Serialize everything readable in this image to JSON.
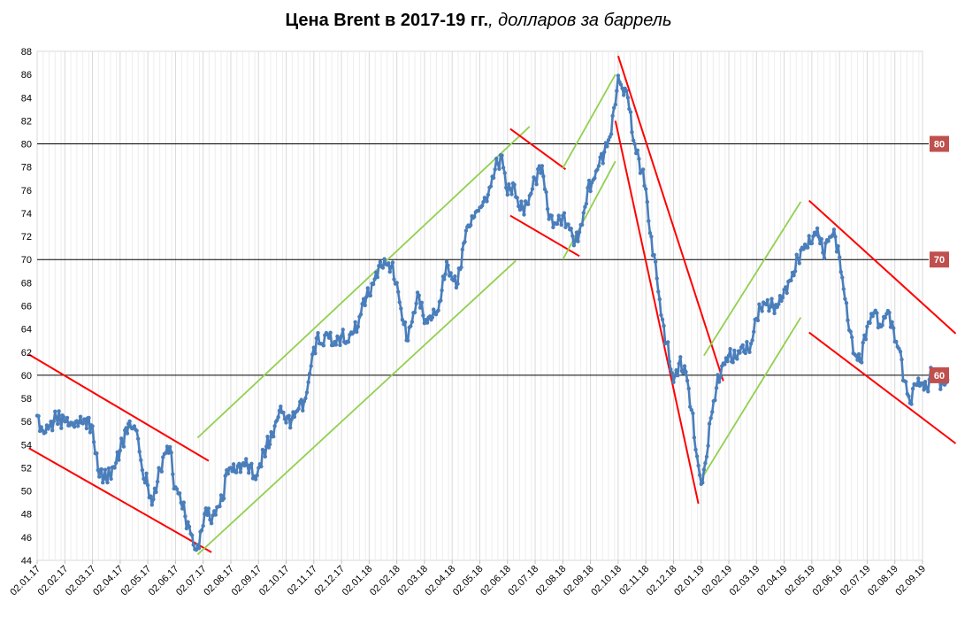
{
  "chart_data": {
    "type": "line",
    "title": "Цена Brent в 2017-19 гг.",
    "subtitle": ", долларов за баррель",
    "xlabel": "",
    "ylabel": "",
    "ylim": [
      44,
      88
    ],
    "y_ticks": [
      "44",
      "46",
      "48",
      "50",
      "52",
      "54",
      "56",
      "58",
      "60",
      "62",
      "64",
      "66",
      "68",
      "70",
      "72",
      "74",
      "76",
      "78",
      "80",
      "82",
      "84",
      "86",
      "88"
    ],
    "x_ticks": [
      "02.01.17",
      "02.02.17",
      "02.03.17",
      "02.04.17",
      "02.05.17",
      "02.06.17",
      "02.07.17",
      "02.08.17",
      "02.09.17",
      "02.10.17",
      "02.11.17",
      "02.12.17",
      "02.01.18",
      "02.02.18",
      "02.03.18",
      "02.04.18",
      "02.05.18",
      "02.06.18",
      "02.07.18",
      "02.08.18",
      "02.09.18",
      "02.10.18",
      "02.11.18",
      "02.12.18",
      "02.01.19",
      "02.02.19",
      "02.03.19",
      "02.04.19",
      "02.05.19",
      "02.06.19",
      "02.07.19",
      "02.08.19",
      "02.09.19"
    ],
    "grid": "vertical-minor",
    "series_color": "#4A7EBB",
    "reference_lines": [
      {
        "value": 80,
        "label": "80"
      },
      {
        "value": 70,
        "label": "70"
      },
      {
        "value": 60,
        "label": "60"
      }
    ],
    "badge_color": "#C0504D",
    "channel_colors": {
      "down": "#FF0000",
      "up": "#92D050"
    },
    "series": [
      {
        "x": [
          "02.01.17",
          "02.02.17",
          "02.03.17",
          "02.04.17",
          "02.05.17",
          "02.06.17",
          "02.07.17",
          "02.08.17",
          "02.09.17",
          "02.10.17",
          "02.11.17",
          "02.12.17",
          "02.01.18",
          "02.02.18",
          "02.03.18",
          "02.04.18",
          "02.05.18",
          "02.06.18",
          "02.07.18",
          "02.08.18",
          "02.09.18",
          "02.10.18",
          "02.11.18",
          "02.12.18",
          "02.01.19",
          "02.02.19",
          "02.03.19",
          "02.04.19",
          "02.05.19",
          "02.06.19",
          "02.07.19",
          "02.08.19",
          "02.09.19"
        ],
        "anchors": [
          [
            0,
            56.5
          ],
          [
            0.2,
            55.2
          ],
          [
            0.45,
            55.6
          ],
          [
            0.7,
            56.3
          ],
          [
            1.0,
            56.0
          ],
          [
            1.3,
            55.7
          ],
          [
            1.7,
            56.2
          ],
          [
            2.0,
            55.6
          ],
          [
            2.2,
            51.8
          ],
          [
            2.5,
            51.0
          ],
          [
            2.8,
            52.0
          ],
          [
            3.0,
            53.5
          ],
          [
            3.3,
            55.8
          ],
          [
            3.6,
            55.2
          ],
          [
            3.8,
            51.8
          ],
          [
            4.0,
            50.5
          ],
          [
            4.15,
            48.8
          ],
          [
            4.35,
            50.8
          ],
          [
            4.6,
            53.2
          ],
          [
            4.8,
            53.8
          ],
          [
            4.95,
            50.2
          ],
          [
            5.15,
            49.8
          ],
          [
            5.35,
            47.8
          ],
          [
            5.55,
            46.3
          ],
          [
            5.75,
            44.9
          ],
          [
            5.95,
            46.6
          ],
          [
            6.1,
            48.5
          ],
          [
            6.3,
            47.2
          ],
          [
            6.5,
            48.6
          ],
          [
            6.7,
            49.2
          ],
          [
            6.85,
            51.8
          ],
          [
            7.0,
            52.0
          ],
          [
            7.2,
            51.6
          ],
          [
            7.45,
            52.4
          ],
          [
            7.7,
            52.2
          ],
          [
            7.9,
            51.0
          ],
          [
            8.0,
            52.0
          ],
          [
            8.2,
            53.5
          ],
          [
            8.5,
            54.7
          ],
          [
            8.8,
            57.3
          ],
          [
            9.0,
            55.9
          ],
          [
            9.2,
            56.2
          ],
          [
            9.45,
            57.1
          ],
          [
            9.7,
            58.0
          ],
          [
            9.9,
            60.8
          ],
          [
            10.1,
            63.2
          ],
          [
            10.3,
            62.7
          ],
          [
            10.5,
            63.5
          ],
          [
            10.7,
            62.6
          ],
          [
            10.9,
            63.2
          ],
          [
            11.0,
            63.4
          ],
          [
            11.2,
            62.9
          ],
          [
            11.4,
            63.6
          ],
          [
            11.6,
            64.2
          ],
          [
            11.8,
            66.6
          ],
          [
            12.0,
            66.9
          ],
          [
            12.2,
            68.3
          ],
          [
            12.4,
            69.8
          ],
          [
            12.6,
            69.6
          ],
          [
            12.8,
            69.4
          ],
          [
            13.0,
            68.0
          ],
          [
            13.2,
            64.8
          ],
          [
            13.4,
            63.0
          ],
          [
            13.6,
            65.4
          ],
          [
            13.8,
            66.9
          ],
          [
            14.0,
            64.5
          ],
          [
            14.2,
            65.1
          ],
          [
            14.5,
            65.6
          ],
          [
            14.8,
            69.8
          ],
          [
            15.0,
            68.3
          ],
          [
            15.2,
            67.9
          ],
          [
            15.5,
            72.5
          ],
          [
            15.8,
            73.7
          ],
          [
            16.0,
            74.5
          ],
          [
            16.3,
            75.6
          ],
          [
            16.55,
            77.8
          ],
          [
            16.8,
            79.0
          ],
          [
            17.0,
            75.6
          ],
          [
            17.2,
            76.6
          ],
          [
            17.45,
            74.3
          ],
          [
            17.7,
            74.8
          ],
          [
            17.9,
            76.1
          ],
          [
            18.0,
            77.0
          ],
          [
            18.25,
            78.1
          ],
          [
            18.5,
            73.5
          ],
          [
            18.75,
            73.1
          ],
          [
            19.0,
            73.8
          ],
          [
            19.25,
            72.6
          ],
          [
            19.45,
            71.6
          ],
          [
            19.7,
            73.0
          ],
          [
            19.9,
            76.2
          ],
          [
            20.1,
            76.9
          ],
          [
            20.3,
            78.1
          ],
          [
            20.5,
            79.3
          ],
          [
            20.7,
            80.6
          ],
          [
            20.9,
            83.4
          ],
          [
            21.0,
            85.9
          ],
          [
            21.15,
            84.8
          ],
          [
            21.35,
            84.0
          ],
          [
            21.55,
            80.3
          ],
          [
            21.75,
            78.7
          ],
          [
            22.0,
            76.1
          ],
          [
            22.15,
            72.3
          ],
          [
            22.35,
            69.8
          ],
          [
            22.55,
            65.2
          ],
          [
            22.75,
            62.8
          ],
          [
            22.95,
            60.2
          ],
          [
            23.0,
            59.4
          ],
          [
            23.2,
            61.0
          ],
          [
            23.45,
            60.3
          ],
          [
            23.65,
            57.0
          ],
          [
            23.85,
            53.0
          ],
          [
            24.0,
            50.6
          ],
          [
            24.15,
            52.4
          ],
          [
            24.35,
            56.3
          ],
          [
            24.55,
            58.9
          ],
          [
            24.75,
            60.8
          ],
          [
            25.0,
            61.7
          ],
          [
            25.25,
            61.5
          ],
          [
            25.5,
            62.6
          ],
          [
            25.75,
            62.0
          ],
          [
            26.0,
            64.9
          ],
          [
            26.25,
            66.3
          ],
          [
            26.5,
            65.9
          ],
          [
            26.75,
            65.9
          ],
          [
            27.0,
            67.4
          ],
          [
            27.25,
            68.2
          ],
          [
            27.5,
            70.1
          ],
          [
            27.75,
            71.3
          ],
          [
            28.0,
            71.4
          ],
          [
            28.2,
            72.7
          ],
          [
            28.4,
            70.6
          ],
          [
            28.6,
            71.6
          ],
          [
            28.8,
            72.6
          ],
          [
            29.0,
            70.2
          ],
          [
            29.2,
            66.6
          ],
          [
            29.35,
            63.9
          ],
          [
            29.55,
            61.8
          ],
          [
            29.75,
            61.2
          ],
          [
            30.0,
            64.2
          ],
          [
            30.25,
            65.4
          ],
          [
            30.5,
            64.2
          ],
          [
            30.7,
            65.3
          ],
          [
            30.9,
            64.6
          ],
          [
            31.0,
            62.9
          ],
          [
            31.15,
            62.3
          ],
          [
            31.35,
            59.5
          ],
          [
            31.55,
            57.6
          ],
          [
            31.75,
            59.2
          ],
          [
            32.0,
            59.3
          ],
          [
            32.15,
            58.9
          ],
          [
            32.35,
            60.5
          ],
          [
            32.55,
            59.7
          ],
          [
            32.75,
            59.3
          ],
          [
            32.9,
            59.6
          ]
        ]
      }
    ],
    "channels": [
      {
        "kind": "down",
        "from": [
          -0.3,
          61.8
        ],
        "to": [
          6.2,
          52.6
        ]
      },
      {
        "kind": "down",
        "from": [
          -0.3,
          53.7
        ],
        "to": [
          6.3,
          44.7
        ]
      },
      {
        "kind": "up",
        "from": [
          5.8,
          54.6
        ],
        "to": [
          17.8,
          81.5
        ]
      },
      {
        "kind": "up",
        "from": [
          5.8,
          44.5
        ],
        "to": [
          17.3,
          69.9
        ]
      },
      {
        "kind": "down",
        "from": [
          17.1,
          81.3
        ],
        "to": [
          19.1,
          77.8
        ]
      },
      {
        "kind": "down",
        "from": [
          17.1,
          73.8
        ],
        "to": [
          19.6,
          70.3
        ]
      },
      {
        "kind": "up",
        "from": [
          19.0,
          77.9
        ],
        "to": [
          20.9,
          86.0
        ]
      },
      {
        "kind": "up",
        "from": [
          19.0,
          70.0
        ],
        "to": [
          20.9,
          78.5
        ]
      },
      {
        "kind": "down",
        "from": [
          21.0,
          87.6
        ],
        "to": [
          24.8,
          59.5
        ]
      },
      {
        "kind": "down",
        "from": [
          20.9,
          82.0
        ],
        "to": [
          23.9,
          48.9
        ]
      },
      {
        "kind": "up",
        "from": [
          24.1,
          61.7
        ],
        "to": [
          27.6,
          75.0
        ]
      },
      {
        "kind": "up",
        "from": [
          24.0,
          51.0
        ],
        "to": [
          27.6,
          65.0
        ]
      },
      {
        "kind": "down",
        "from": [
          27.9,
          75.1
        ],
        "to": [
          33.2,
          63.6
        ]
      },
      {
        "kind": "down",
        "from": [
          27.9,
          63.7
        ],
        "to": [
          33.2,
          54.1
        ]
      }
    ]
  }
}
